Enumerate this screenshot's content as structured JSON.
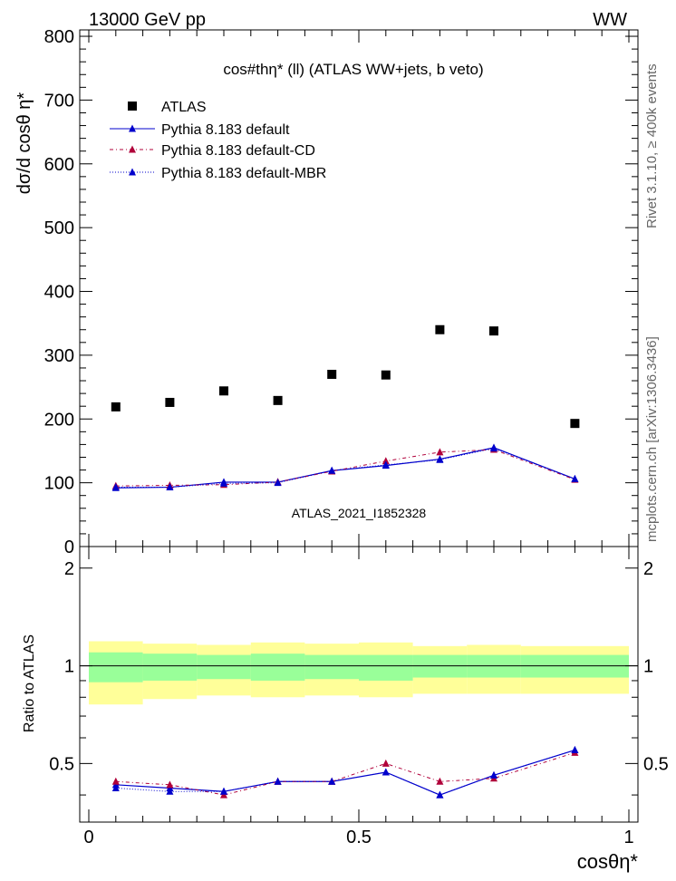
{
  "header": {
    "left": "13000 GeV pp",
    "right": "WW"
  },
  "side_labels": {
    "rivet": "Rivet 3.1.10, ≥ 400k events",
    "mcplots": "mcplots.cern.ch [arXiv:1306.3436]"
  },
  "chart_data": [
    {
      "type": "scatter",
      "title": "cos#thη* (ll) (ATLAS WW+jets, b veto)",
      "watermark": "ATLAS_2021_I1852328",
      "xlabel": "cosθη*",
      "ylabel": "dσ/d cosθ η*",
      "xlim": [
        0,
        1
      ],
      "ylim": [
        0,
        810
      ],
      "yticks": [
        0,
        100,
        200,
        300,
        400,
        500,
        600,
        700,
        800
      ],
      "x": [
        0.05,
        0.15,
        0.25,
        0.35,
        0.45,
        0.55,
        0.65,
        0.75,
        0.9
      ],
      "series": [
        {
          "name": "ATLAS",
          "color": "#000000",
          "style": "square",
          "values": [
            219,
            226,
            244,
            229,
            270,
            269,
            340,
            338,
            193
          ]
        },
        {
          "name": "Pythia 8.183 default",
          "color": "#0000cc",
          "style": "solid",
          "values": [
            92,
            93,
            101,
            101,
            119,
            127,
            137,
            155,
            106
          ]
        },
        {
          "name": "Pythia 8.183 default-CD",
          "color": "#b0003a",
          "style": "dashdot",
          "values": [
            95,
            96,
            97,
            101,
            118,
            134,
            148,
            152,
            105
          ]
        },
        {
          "name": "Pythia 8.183 default-MBR",
          "color": "#0000cc",
          "style": "dotted",
          "values": [
            93,
            93,
            99,
            100,
            119,
            128,
            136,
            154,
            106
          ]
        }
      ]
    },
    {
      "type": "line",
      "ylabel": "Ratio to ATLAS",
      "xlabel": "cosθη*",
      "xlim": [
        0,
        1
      ],
      "ylim": [
        0.33,
        2.33
      ],
      "yticks_labeled": [
        0.5,
        1,
        2
      ],
      "xticks_labeled": [
        0,
        0.5,
        1
      ],
      "xtick_labels": [
        "0",
        "0.5",
        "1"
      ],
      "ytick_labels": [
        "0.5",
        "1",
        "2"
      ],
      "bin_edges": [
        0,
        0.1,
        0.2,
        0.3,
        0.4,
        0.5,
        0.6,
        0.7,
        0.8,
        1.0
      ],
      "band_inner": {
        "color": "#99ff99",
        "lo": [
          0.89,
          0.9,
          0.91,
          0.9,
          0.91,
          0.9,
          0.92,
          0.92,
          0.92
        ],
        "hi": [
          1.1,
          1.09,
          1.08,
          1.09,
          1.08,
          1.08,
          1.08,
          1.08,
          1.08
        ]
      },
      "band_outer": {
        "color": "#ffff99",
        "lo": [
          0.76,
          0.79,
          0.81,
          0.8,
          0.81,
          0.8,
          0.82,
          0.82,
          0.82
        ],
        "hi": [
          1.19,
          1.17,
          1.16,
          1.18,
          1.17,
          1.18,
          1.15,
          1.16,
          1.15
        ]
      },
      "x": [
        0.05,
        0.15,
        0.25,
        0.35,
        0.45,
        0.55,
        0.65,
        0.75,
        0.9
      ],
      "series": [
        {
          "name": "Pythia 8.183 default",
          "color": "#0000cc",
          "style": "solid",
          "values": [
            0.43,
            0.42,
            0.41,
            0.44,
            0.44,
            0.47,
            0.4,
            0.46,
            0.55
          ]
        },
        {
          "name": "Pythia 8.183 default-CD",
          "color": "#b0003a",
          "style": "dashdot",
          "values": [
            0.44,
            0.43,
            0.4,
            0.44,
            0.44,
            0.5,
            0.44,
            0.45,
            0.54
          ]
        },
        {
          "name": "Pythia 8.183 default-MBR",
          "color": "#0000cc",
          "style": "dotted",
          "values": [
            0.42,
            0.41,
            0.41,
            0.44,
            0.44,
            0.47,
            0.4,
            0.46,
            0.55
          ]
        }
      ]
    }
  ]
}
